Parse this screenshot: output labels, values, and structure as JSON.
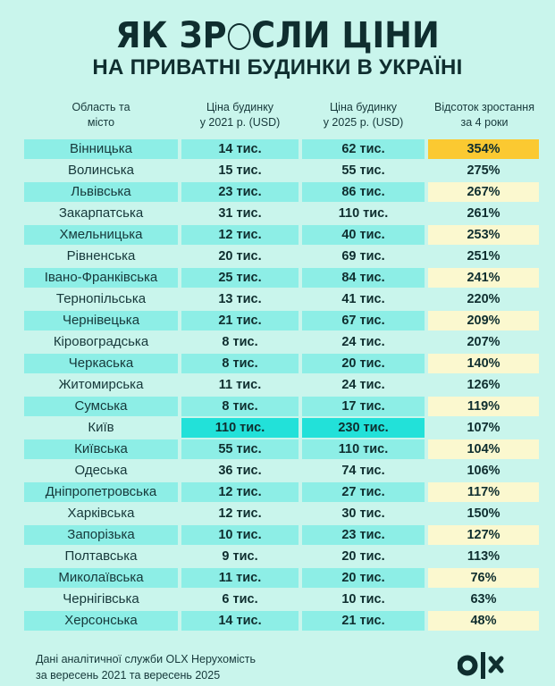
{
  "header": {
    "title_part1": "ЯК ЗР",
    "title_part2": "СЛИ ЦІНИ",
    "subtitle": "НА ПРИВАТНІ БУДИНКИ В УКРАЇНІ"
  },
  "columns": {
    "region": [
      "Область та",
      "місто"
    ],
    "price_2021": [
      "Ціна будинку",
      "у 2021 р. (USD)"
    ],
    "price_2025": [
      "Ціна будинку",
      "у 2025 р. (USD)"
    ],
    "growth": [
      "Відсоток зростання",
      "за 4 роки"
    ]
  },
  "rows": [
    {
      "region": "Вінницька",
      "p2021": "14 тис.",
      "p2025": "62 тис.",
      "growth": "354%"
    },
    {
      "region": "Волинська",
      "p2021": "15 тис.",
      "p2025": "55 тис.",
      "growth": "275%"
    },
    {
      "region": "Львівська",
      "p2021": "23 тис.",
      "p2025": "86 тис.",
      "growth": "267%"
    },
    {
      "region": "Закарпатська",
      "p2021": "31 тис.",
      "p2025": "110 тис.",
      "growth": "261%"
    },
    {
      "region": "Хмельницька",
      "p2021": "12 тис.",
      "p2025": "40 тис.",
      "growth": "253%"
    },
    {
      "region": "Рівненська",
      "p2021": "20 тис.",
      "p2025": "69 тис.",
      "growth": "251%"
    },
    {
      "region": "Івано-Франківська",
      "p2021": "25 тис.",
      "p2025": "84 тис.",
      "growth": "241%"
    },
    {
      "region": "Тернопільська",
      "p2021": "13 тис.",
      "p2025": "41 тис.",
      "growth": "220%"
    },
    {
      "region": "Чернівецька",
      "p2021": "21 тис.",
      "p2025": "67 тис.",
      "growth": "209%"
    },
    {
      "region": "Кіровоградська",
      "p2021": "8 тис.",
      "p2025": "24 тис.",
      "growth": "207%"
    },
    {
      "region": "Черкаська",
      "p2021": "8 тис.",
      "p2025": "20 тис.",
      "growth": "140%"
    },
    {
      "region": "Житомирська",
      "p2021": "11 тис.",
      "p2025": "24 тис.",
      "growth": "126%"
    },
    {
      "region": "Сумська",
      "p2021": "8 тис.",
      "p2025": "17 тис.",
      "growth": "119%"
    },
    {
      "region": "Київ",
      "p2021": "110 тис.",
      "p2025": "230 тис.",
      "growth": "107%"
    },
    {
      "region": "Київська",
      "p2021": "55 тис.",
      "p2025": "110 тис.",
      "growth": "104%"
    },
    {
      "region": "Одеська",
      "p2021": "36 тис.",
      "p2025": "74 тис.",
      "growth": "106%"
    },
    {
      "region": "Дніпропетровська",
      "p2021": "12 тис.",
      "p2025": "27 тис.",
      "growth": "117%"
    },
    {
      "region": "Харківська",
      "p2021": "12 тис.",
      "p2025": "30 тис.",
      "growth": "150%"
    },
    {
      "region": "Запорізька",
      "p2021": "10 тис.",
      "p2025": "23 тис.",
      "growth": "127%"
    },
    {
      "region": "Полтавська",
      "p2021": "9 тис.",
      "p2025": "20 тис.",
      "growth": "113%"
    },
    {
      "region": "Миколаївська",
      "p2021": "11 тис.",
      "p2025": "20 тис.",
      "growth": "76%"
    },
    {
      "region": "Чернігівська",
      "p2021": "6 тис.",
      "p2025": "10 тис.",
      "growth": "63%"
    },
    {
      "region": "Херсонська",
      "p2021": "14 тис.",
      "p2025": "21 тис.",
      "growth": "48%"
    }
  ],
  "footer": {
    "line1": "Дані аналітичної служби OLX Нерухомість",
    "line2": "за вересень 2021 та вересень 2025"
  },
  "logo": {
    "name": "olx-logo"
  },
  "colors": {
    "background": "#c9f5ec",
    "row_band": "#8deee6",
    "growth_band": "#fbf8cf",
    "top_growth": "#fbc931",
    "kyiv_highlight": "#22e1d9",
    "text": "#0f2e2f"
  },
  "chart_data": {
    "type": "table",
    "title": "ЯК ЗРОСЛИ ЦІНИ НА ПРИВАТНІ БУДИНКИ В УКРАЇНІ",
    "columns": [
      "Область та місто",
      "Ціна будинку у 2021 р. (USD)",
      "Ціна будинку у 2025 р. (USD)",
      "Відсоток зростання за 4 роки"
    ],
    "categories": [
      "Вінницька",
      "Волинська",
      "Львівська",
      "Закарпатська",
      "Хмельницька",
      "Рівненська",
      "Івано-Франківська",
      "Тернопільська",
      "Чернівецька",
      "Кіровоградська",
      "Черкаська",
      "Житомирська",
      "Сумська",
      "Київ",
      "Київська",
      "Одеська",
      "Дніпропетровська",
      "Харківська",
      "Запорізька",
      "Полтавська",
      "Миколаївська",
      "Чернігівська",
      "Херсонська"
    ],
    "series": [
      {
        "name": "Ціна 2021 (тис. USD)",
        "values": [
          14,
          15,
          23,
          31,
          12,
          20,
          25,
          13,
          21,
          8,
          8,
          11,
          8,
          110,
          55,
          36,
          12,
          12,
          10,
          9,
          11,
          6,
          14
        ]
      },
      {
        "name": "Ціна 2025 (тис. USD)",
        "values": [
          62,
          55,
          86,
          110,
          40,
          69,
          84,
          41,
          67,
          24,
          20,
          24,
          17,
          230,
          110,
          74,
          27,
          30,
          23,
          20,
          20,
          10,
          21
        ]
      },
      {
        "name": "Зростання (%)",
        "values": [
          354,
          275,
          267,
          261,
          253,
          251,
          241,
          220,
          209,
          207,
          140,
          126,
          119,
          107,
          104,
          106,
          117,
          150,
          127,
          113,
          76,
          63,
          48
        ]
      }
    ],
    "annotations": [
      "Дані аналітичної служби OLX Нерухомість за вересень 2021 та вересень 2025"
    ]
  }
}
